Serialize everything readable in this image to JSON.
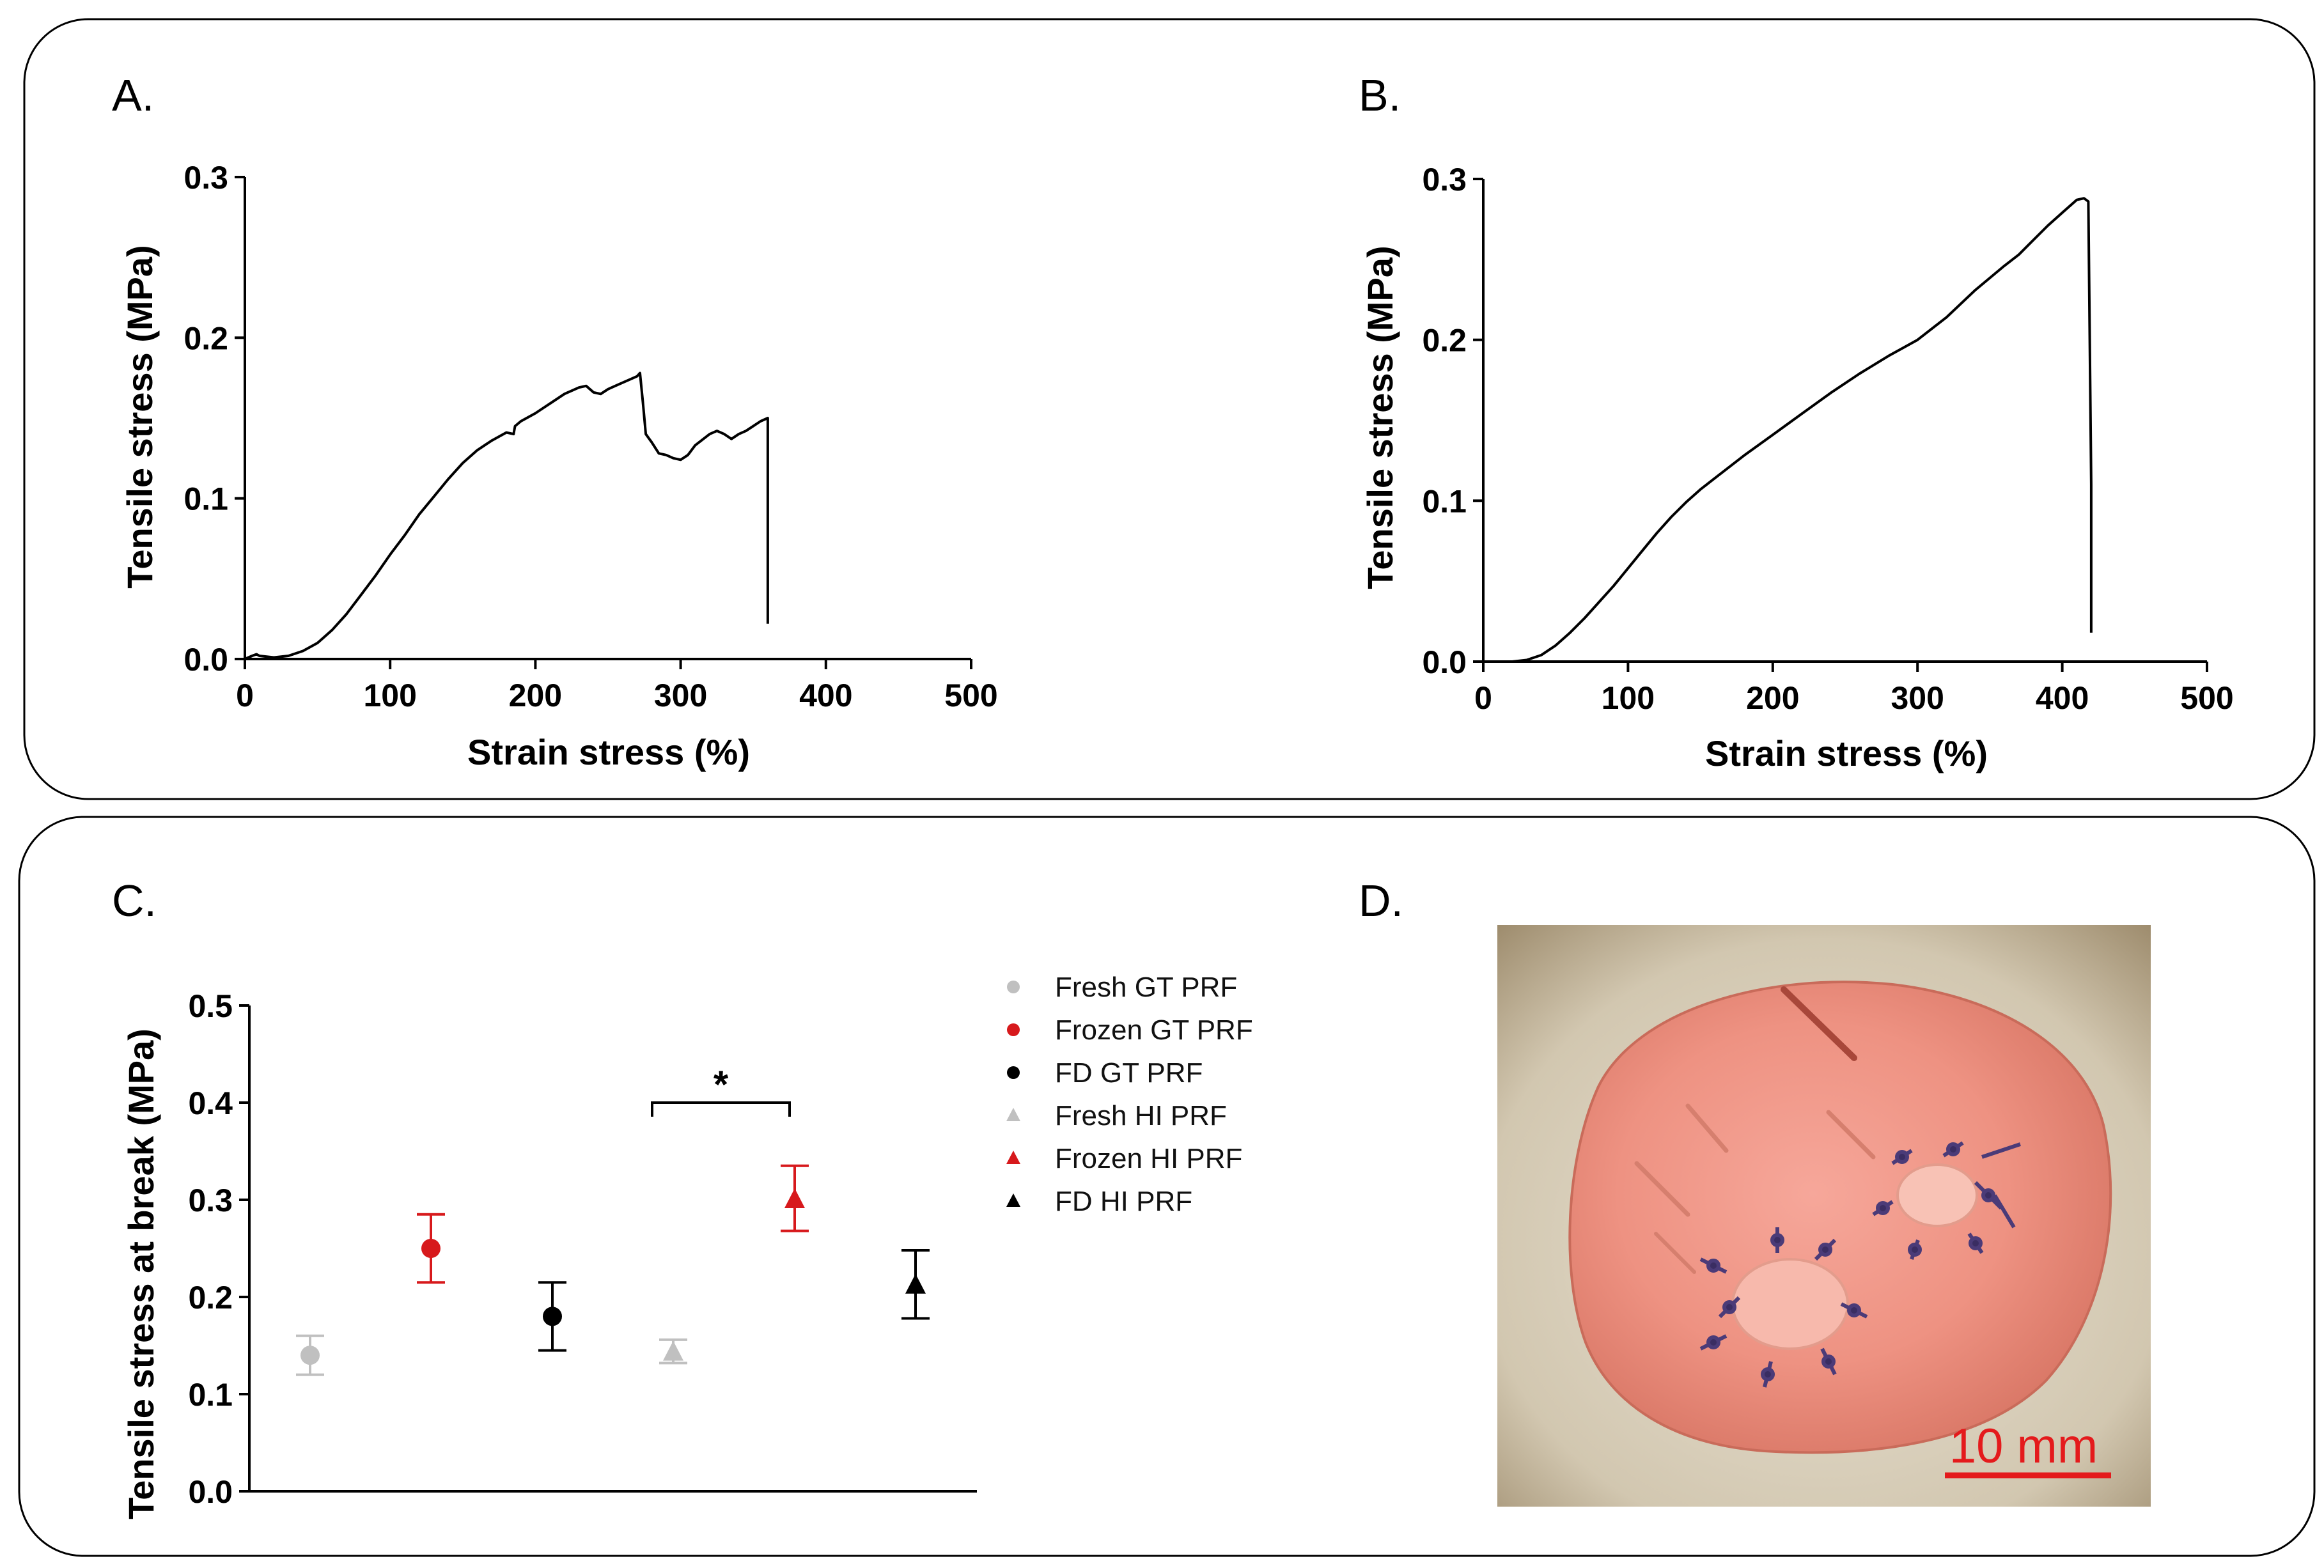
{
  "panels": {
    "a": {
      "letter": "A."
    },
    "b": {
      "letter": "B."
    },
    "c": {
      "letter": "C."
    },
    "d": {
      "letter": "D.",
      "scale_bar_label": "10 mm",
      "scale_bar_color": "#e41a1c"
    }
  },
  "chart_data": [
    {
      "id": "A",
      "type": "line",
      "title": "",
      "xlabel": "Strain stress (%)",
      "ylabel": "Tensile stress (MPa)",
      "xlim": [
        0,
        500
      ],
      "ylim": [
        0,
        0.3
      ],
      "xticks": [
        "0",
        "100",
        "200",
        "300",
        "400",
        "500"
      ],
      "yticks": [
        "0.0",
        "0.1",
        "0.2",
        "0.3"
      ],
      "grid": false,
      "series": [
        {
          "color": "#000000",
          "x": [
            0,
            5,
            8,
            10,
            20,
            30,
            40,
            50,
            60,
            70,
            80,
            90,
            100,
            110,
            120,
            130,
            140,
            150,
            160,
            170,
            180,
            185,
            186,
            190,
            200,
            210,
            220,
            230,
            235,
            240,
            245,
            250,
            255,
            260,
            265,
            270,
            272,
            274,
            276,
            280,
            285,
            290,
            295,
            300,
            305,
            310,
            320,
            325,
            330,
            335,
            340,
            345,
            350,
            355,
            360,
            360
          ],
          "y": [
            0.0,
            0.002,
            0.003,
            0.002,
            0.001,
            0.002,
            0.005,
            0.01,
            0.018,
            0.028,
            0.04,
            0.052,
            0.065,
            0.077,
            0.09,
            0.101,
            0.112,
            0.122,
            0.13,
            0.136,
            0.141,
            0.14,
            0.145,
            0.148,
            0.153,
            0.159,
            0.165,
            0.169,
            0.17,
            0.166,
            0.165,
            0.168,
            0.17,
            0.172,
            0.174,
            0.176,
            0.178,
            0.16,
            0.14,
            0.135,
            0.128,
            0.127,
            0.125,
            0.124,
            0.127,
            0.133,
            0.14,
            0.142,
            0.14,
            0.137,
            0.14,
            0.142,
            0.145,
            0.148,
            0.15,
            0.022
          ]
        }
      ]
    },
    {
      "id": "B",
      "type": "line",
      "title": "",
      "xlabel": "Strain stress (%)",
      "ylabel": "Tensile stress (MPa)",
      "xlim": [
        0,
        500
      ],
      "ylim": [
        0,
        0.3
      ],
      "xticks": [
        "0",
        "100",
        "200",
        "300",
        "400",
        "500"
      ],
      "yticks": [
        "0.0",
        "0.1",
        "0.2",
        "0.3"
      ],
      "grid": false,
      "series": [
        {
          "color": "#000000",
          "x": [
            0,
            20,
            30,
            40,
            50,
            60,
            70,
            80,
            90,
            100,
            110,
            120,
            130,
            140,
            150,
            160,
            180,
            200,
            220,
            240,
            260,
            280,
            290,
            300,
            320,
            340,
            360,
            370,
            380,
            390,
            400,
            405,
            410,
            415,
            418,
            420,
            420
          ],
          "y": [
            0.0,
            0.0,
            0.001,
            0.004,
            0.01,
            0.018,
            0.027,
            0.037,
            0.047,
            0.058,
            0.069,
            0.08,
            0.09,
            0.099,
            0.107,
            0.114,
            0.128,
            0.141,
            0.154,
            0.167,
            0.179,
            0.19,
            0.195,
            0.2,
            0.214,
            0.231,
            0.246,
            0.253,
            0.262,
            0.271,
            0.279,
            0.283,
            0.287,
            0.288,
            0.286,
            0.11,
            0.018
          ]
        }
      ]
    },
    {
      "id": "C",
      "type": "scatter",
      "title": "",
      "xlabel": "",
      "ylabel": "Tensile stress at break (MPa)",
      "ylim": [
        0,
        0.5
      ],
      "yticks": [
        "0.0",
        "0.1",
        "0.2",
        "0.3",
        "0.4",
        "0.5"
      ],
      "grid": false,
      "legend_position": "right",
      "significance": {
        "label": "*",
        "between": [
          "Fresh HI PRF",
          "Frozen HI PRF"
        ],
        "y": 0.4
      },
      "series": [
        {
          "name": "Fresh GT PRF",
          "marker": "circle",
          "color": "#c0c0c0",
          "x": 1,
          "y": 0.14,
          "err_low": 0.12,
          "err_high": 0.16
        },
        {
          "name": "Frozen GT PRF",
          "marker": "circle",
          "color": "#d7191c",
          "x": 2,
          "y": 0.25,
          "err_low": 0.215,
          "err_high": 0.285
        },
        {
          "name": "FD GT PRF",
          "marker": "circle",
          "color": "#000000",
          "x": 3,
          "y": 0.18,
          "err_low": 0.145,
          "err_high": 0.215
        },
        {
          "name": "Fresh HI PRF",
          "marker": "triangle",
          "color": "#c0c0c0",
          "x": 4,
          "y": 0.143,
          "err_low": 0.132,
          "err_high": 0.156
        },
        {
          "name": "Frozen HI PRF",
          "marker": "triangle",
          "color": "#d7191c",
          "x": 5,
          "y": 0.3,
          "err_low": 0.268,
          "err_high": 0.335
        },
        {
          "name": "FD HI PRF",
          "marker": "triangle",
          "color": "#000000",
          "x": 6,
          "y": 0.212,
          "err_low": 0.178,
          "err_high": 0.248
        }
      ]
    }
  ]
}
